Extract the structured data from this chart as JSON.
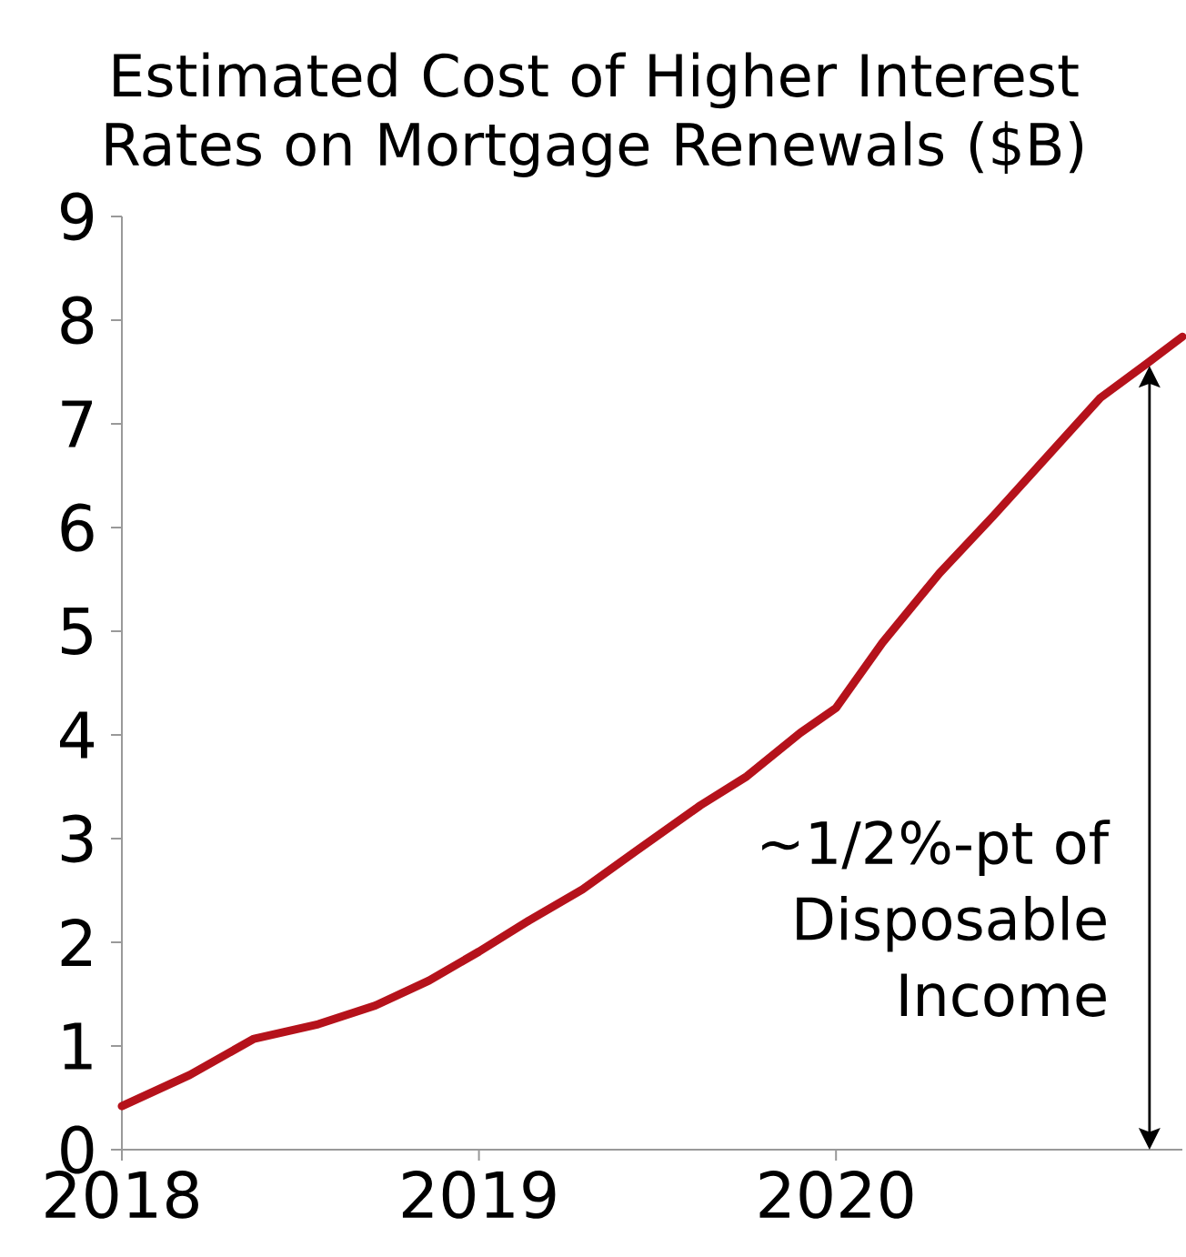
{
  "chart_data": {
    "type": "line",
    "title": "Estimated Cost of Higher Interest Rates on Mortgage Renewals ($B)",
    "x": [
      2018.0,
      2018.19,
      2018.37,
      2018.55,
      2018.71,
      2018.86,
      2019.0,
      2019.14,
      2019.29,
      2019.44,
      2019.62,
      2019.75,
      2019.9,
      2020.0,
      2020.13,
      2020.29,
      2020.44,
      2020.59,
      2020.74,
      2020.87,
      2020.97
    ],
    "series": [
      {
        "color": "#b5121b",
        "values": [
          0.42,
          0.72,
          1.07,
          1.21,
          1.39,
          1.63,
          1.91,
          2.21,
          2.51,
          2.88,
          3.32,
          3.6,
          4.02,
          4.26,
          4.89,
          5.56,
          6.11,
          6.68,
          7.25,
          7.58,
          7.84
        ]
      }
    ],
    "xlim": [
      2018,
      2020.97
    ],
    "xticks": [
      2018,
      2019,
      2020
    ],
    "ylim": [
      0,
      9
    ],
    "yticks": [
      0,
      1,
      2,
      3,
      4,
      5,
      6,
      7,
      8,
      9
    ],
    "grid": false,
    "marker": "none",
    "line_style": "solid",
    "annotations": [
      "~1/2%-pt of Disposable Income"
    ]
  }
}
